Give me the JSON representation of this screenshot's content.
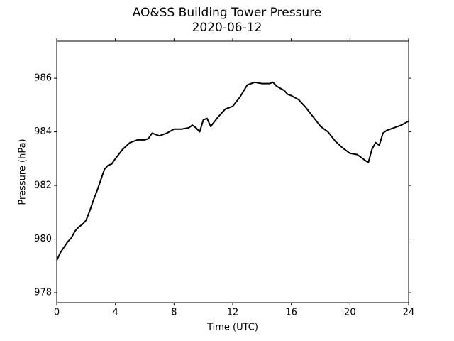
{
  "chart_data": {
    "type": "line",
    "title": "AO&SS Building Tower Pressure",
    "subtitle": "2020-06-12",
    "x_label": "Time (UTC)",
    "y_label": "Pressure (hPa)",
    "x": [
      0,
      0.25,
      0.5,
      0.75,
      1,
      1.25,
      1.5,
      1.75,
      2,
      2.25,
      2.5,
      2.75,
      3,
      3.25,
      3.5,
      3.75,
      4,
      4.5,
      5,
      5.5,
      6,
      6.25,
      6.5,
      7,
      7.5,
      8,
      8.5,
      9,
      9.25,
      9.5,
      9.75,
      10,
      10.25,
      10.5,
      11,
      11.5,
      12,
      12.5,
      13,
      13.5,
      14,
      14.5,
      14.75,
      15,
      15.5,
      15.75,
      16,
      16.5,
      17,
      17.5,
      18,
      18.5,
      19,
      19.5,
      20,
      20.5,
      21,
      21.25,
      21.5,
      21.75,
      22,
      22.25,
      22.5,
      23,
      23.5,
      24
    ],
    "series": [
      {
        "name": "Pressure",
        "color": "#000000",
        "values": [
          979.2,
          979.5,
          979.7,
          979.9,
          980.05,
          980.3,
          980.45,
          980.55,
          980.7,
          981.05,
          981.45,
          981.8,
          982.2,
          982.6,
          982.75,
          982.8,
          983.0,
          983.35,
          983.6,
          983.7,
          983.7,
          983.75,
          983.95,
          983.85,
          983.95,
          984.1,
          984.1,
          984.15,
          984.25,
          984.15,
          984.0,
          984.45,
          984.5,
          984.2,
          984.55,
          984.85,
          984.95,
          985.3,
          985.75,
          985.85,
          985.8,
          985.8,
          985.85,
          985.7,
          985.55,
          985.4,
          985.35,
          985.2,
          984.9,
          984.55,
          984.2,
          984.0,
          983.65,
          983.4,
          983.2,
          983.15,
          982.95,
          982.85,
          983.35,
          983.6,
          983.5,
          983.95,
          984.05,
          984.15,
          984.25,
          984.4
        ]
      }
    ],
    "xlim": [
      0,
      24
    ],
    "xticks": [
      0,
      4,
      8,
      12,
      16,
      20,
      24
    ],
    "ylim": [
      977.63,
      987.38
    ],
    "yticks": [
      978,
      980,
      982,
      984,
      986
    ],
    "grid": false
  }
}
